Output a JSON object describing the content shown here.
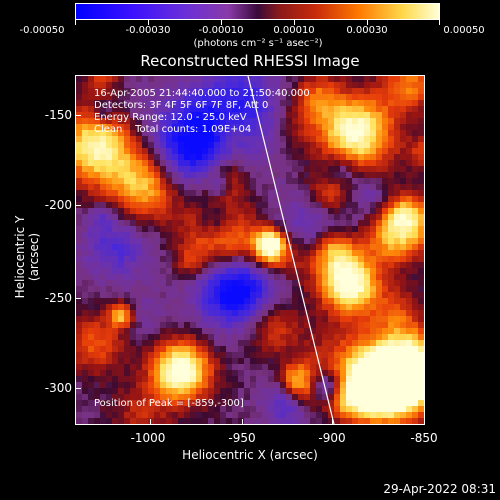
{
  "colorbar": {
    "tick_labels": [
      "-0.00050",
      "-0.00030",
      "-0.00010",
      "0.00010",
      "0.00030",
      "0.00050"
    ],
    "units": "(photons cm⁻² s⁻¹ asec⁻²)"
  },
  "title": "Reconstructed RHESSI Image",
  "info": {
    "time": "16-Apr-2005 21:44:40.000 to 21:50:40.000",
    "detectors": "Detectors: 3F 4F 5F 6F 7F 8F, Att 0",
    "energy": "Energy Range: 12.0 - 25.0 keV",
    "clean": "Clean    Total counts: 1.09E+04"
  },
  "peak": "Position of Peak = [-859,-300]",
  "axes": {
    "y_ticks": [
      "-150",
      "-200",
      "-250",
      "-300"
    ],
    "x_ticks": [
      "-1000",
      "-950",
      "-900",
      "-850"
    ],
    "y_title": "Heliocentric Y (arcsec)",
    "x_title": "Heliocentric X (arcsec)"
  },
  "footer_date": "29-Apr-2022 08:31"
}
